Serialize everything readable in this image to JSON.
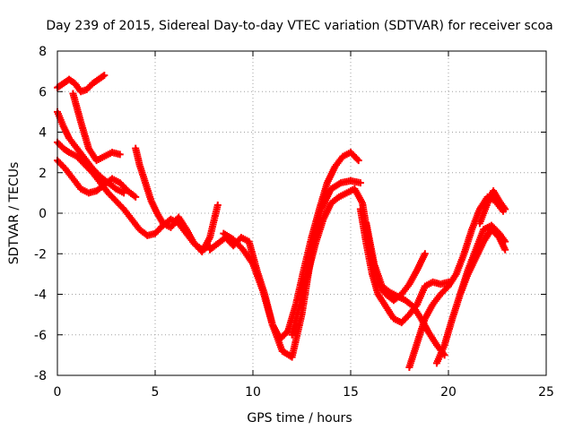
{
  "chart_data": {
    "type": "scatter",
    "title": "Day 239 of 2015, Sidereal Day-to-day VTEC variation (SDTVAR) for receiver scoa",
    "xlabel": "GPS time / hours",
    "ylabel": "SDTVAR / TECUs",
    "xlim": [
      0,
      25
    ],
    "ylim": [
      -8,
      8
    ],
    "xticks": [
      0,
      5,
      10,
      15,
      20,
      25
    ],
    "yticks": [
      -8,
      -6,
      -4,
      -2,
      0,
      2,
      4,
      6,
      8
    ],
    "xtick_labels": [
      "0",
      "5",
      "10",
      "15",
      "20",
      "25"
    ],
    "ytick_labels": [
      "-8",
      "-6",
      "-4",
      "-2",
      "0",
      "2",
      "4",
      "6",
      "8"
    ],
    "grid": true,
    "marker_color": "#ff0000",
    "marker": "plus",
    "series": [
      {
        "x": [
          0.0,
          0.3,
          0.6,
          0.9,
          1.2,
          1.5,
          1.8,
          2.1,
          2.4
        ],
        "y": [
          6.2,
          6.4,
          6.6,
          6.4,
          6.0,
          6.1,
          6.4,
          6.6,
          6.8
        ]
      },
      {
        "x": [
          0.0,
          0.3,
          0.6,
          1.0,
          1.4,
          1.8,
          2.2,
          2.6,
          3.0,
          3.4,
          3.8,
          4.2,
          4.6,
          5.0,
          5.4,
          5.8,
          6.2,
          6.6,
          7.0,
          7.4,
          7.8
        ],
        "y": [
          3.5,
          3.2,
          3.0,
          2.8,
          2.4,
          2.0,
          1.5,
          1.0,
          0.6,
          0.2,
          -0.3,
          -0.8,
          -1.1,
          -1.0,
          -0.6,
          -0.3,
          -0.5,
          -1.0,
          -1.5,
          -1.8,
          -1.6
        ]
      },
      {
        "x": [
          0.0,
          0.3,
          0.6,
          1.0,
          1.4,
          1.8,
          2.2,
          2.6,
          3.0,
          3.4
        ],
        "y": [
          5.0,
          4.3,
          3.7,
          3.2,
          2.7,
          2.2,
          1.8,
          1.5,
          1.2,
          1.0
        ]
      },
      {
        "x": [
          0.0,
          0.4,
          0.8,
          1.2,
          1.6,
          2.0,
          2.4,
          2.8,
          3.2,
          3.6,
          4.0
        ],
        "y": [
          2.6,
          2.2,
          1.7,
          1.2,
          1.0,
          1.1,
          1.4,
          1.7,
          1.5,
          1.1,
          0.8
        ]
      },
      {
        "x": [
          0.8,
          1.2,
          1.6,
          2.0,
          2.4,
          2.8,
          3.2
        ],
        "y": [
          5.9,
          4.5,
          3.2,
          2.6,
          2.8,
          3.0,
          2.9
        ]
      },
      {
        "x": [
          4.0,
          4.2,
          4.5,
          4.8,
          5.1,
          5.4,
          5.8,
          6.2,
          6.6,
          7.0,
          7.4,
          7.8,
          8.2
        ],
        "y": [
          3.2,
          2.4,
          1.5,
          0.6,
          0.0,
          -0.5,
          -0.7,
          -0.2,
          -0.8,
          -1.5,
          -1.9,
          -1.2,
          0.4
        ]
      },
      {
        "x": [
          7.8,
          8.2,
          8.6,
          9.0,
          9.4,
          9.8,
          10.2,
          10.6,
          11.0,
          11.4,
          11.8,
          12.2,
          12.6,
          13.0,
          13.4,
          13.8,
          14.2,
          14.6,
          15.0,
          15.4
        ],
        "y": [
          -1.8,
          -1.5,
          -1.2,
          -1.6,
          -1.2,
          -1.4,
          -2.8,
          -4.0,
          -5.5,
          -6.2,
          -5.8,
          -4.5,
          -2.8,
          -1.2,
          0.2,
          1.5,
          2.3,
          2.8,
          3.0,
          2.6
        ]
      },
      {
        "x": [
          8.5,
          9.0,
          9.5,
          10.0,
          10.5,
          11.0,
          11.5,
          12.0,
          12.5,
          13.0,
          13.5,
          14.0,
          14.5,
          15.0,
          15.5
        ],
        "y": [
          -1.0,
          -1.3,
          -1.8,
          -2.5,
          -3.8,
          -5.5,
          -6.8,
          -7.1,
          -5.0,
          -2.0,
          0.2,
          1.2,
          1.5,
          1.6,
          1.5
        ]
      },
      {
        "x": [
          12.0,
          12.4,
          12.8,
          13.2,
          13.6,
          14.0,
          14.4,
          14.8,
          15.2,
          15.6,
          16.0,
          16.4,
          16.8,
          17.2,
          17.6,
          18.0,
          18.4,
          18.8
        ],
        "y": [
          -6.0,
          -4.5,
          -3.0,
          -1.5,
          -0.3,
          0.5,
          0.8,
          1.0,
          1.2,
          0.5,
          -1.8,
          -3.4,
          -4.0,
          -4.3,
          -4.0,
          -3.5,
          -2.8,
          -2.0
        ]
      },
      {
        "x": [
          15.5,
          15.8,
          16.1,
          16.4,
          16.8,
          17.2,
          17.6,
          18.0,
          18.4,
          18.8,
          19.2,
          19.6,
          20.0
        ],
        "y": [
          0.2,
          -1.5,
          -3.0,
          -4.0,
          -4.6,
          -5.2,
          -5.4,
          -5.0,
          -4.5,
          -3.6,
          -3.4,
          -3.5,
          -3.4
        ]
      },
      {
        "x": [
          15.8,
          16.2,
          16.6,
          17.0,
          17.4,
          17.8,
          18.2,
          18.6,
          19.0,
          19.4,
          19.8
        ],
        "y": [
          -0.5,
          -2.5,
          -3.6,
          -3.9,
          -4.1,
          -4.3,
          -4.6,
          -5.2,
          -5.9,
          -6.5,
          -7.0
        ]
      },
      {
        "x": [
          18.0,
          18.4,
          18.8,
          19.2,
          19.6,
          20.0,
          20.4,
          20.8,
          21.2,
          21.6,
          22.0,
          22.4,
          22.8
        ],
        "y": [
          -7.6,
          -6.4,
          -5.2,
          -4.5,
          -4.0,
          -3.6,
          -3.0,
          -2.0,
          -0.8,
          0.2,
          0.8,
          0.6,
          0.1
        ]
      },
      {
        "x": [
          19.4,
          19.8,
          20.2,
          20.6,
          21.0,
          21.4,
          21.8,
          22.2,
          22.6,
          22.9
        ],
        "y": [
          -7.4,
          -6.5,
          -5.2,
          -4.0,
          -2.8,
          -1.8,
          -0.8,
          -0.6,
          -1.0,
          -1.4
        ]
      },
      {
        "x": [
          20.6,
          21.0,
          21.4,
          21.8,
          22.2,
          22.6,
          22.9
        ],
        "y": [
          -4.0,
          -3.0,
          -2.2,
          -1.4,
          -0.8,
          -1.2,
          -1.8
        ]
      },
      {
        "x": [
          21.6,
          22.0,
          22.3,
          22.6,
          22.9
        ],
        "y": [
          -0.5,
          0.5,
          1.1,
          0.6,
          0.2
        ]
      }
    ]
  }
}
